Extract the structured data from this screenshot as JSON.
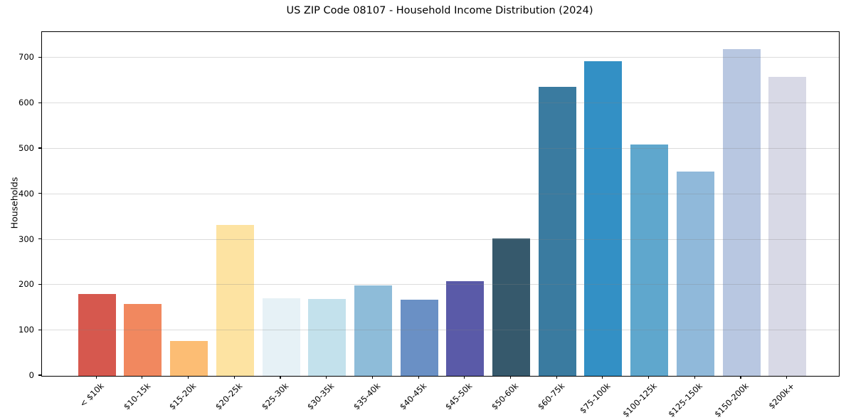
{
  "chart_data": {
    "type": "bar",
    "title": "US ZIP Code 08107 - Household Income Distribution (2024)",
    "xlabel": "",
    "ylabel": "Households",
    "categories": [
      "< $10k",
      "$10-15k",
      "$15-20k",
      "$20-25k",
      "$25-30k",
      "$30-35k",
      "$35-40k",
      "$40-45k",
      "$45-50k",
      "$50-60k",
      "$60-75k",
      "$75-100k",
      "$100-125k",
      "$125-150k",
      "$150-200k",
      "$200k+"
    ],
    "values": [
      180,
      159,
      77,
      332,
      171,
      169,
      199,
      167,
      209,
      302,
      636,
      692,
      509,
      450,
      719,
      659
    ],
    "bar_colors": [
      "#d6584e",
      "#f1885f",
      "#fcbd74",
      "#fde3a2",
      "#e6f1f6",
      "#c3e1ec",
      "#8ebcd9",
      "#6a90c5",
      "#5a5aa8",
      "#36596c",
      "#3a7ba0",
      "#3390c5",
      "#5fa7cd",
      "#90b9da",
      "#b8c7e1",
      "#d8d9e6"
    ],
    "yticks": [
      0,
      100,
      200,
      300,
      400,
      500,
      600,
      700
    ],
    "ylim": [
      0,
      757
    ],
    "grid": true,
    "grid_color": "#d4d4d4",
    "spine_color": "#000000",
    "legend_position": "none"
  }
}
